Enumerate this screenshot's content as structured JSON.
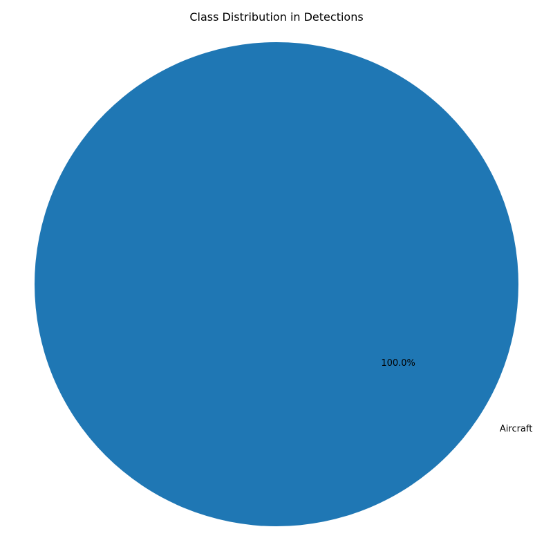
{
  "chart_data": {
    "type": "pie",
    "title": "Class Distribution in Detections",
    "slices": [
      {
        "label": "Aircraft",
        "value": 100.0,
        "percent_label": "100.0%",
        "color": "#1f77b4"
      }
    ]
  }
}
